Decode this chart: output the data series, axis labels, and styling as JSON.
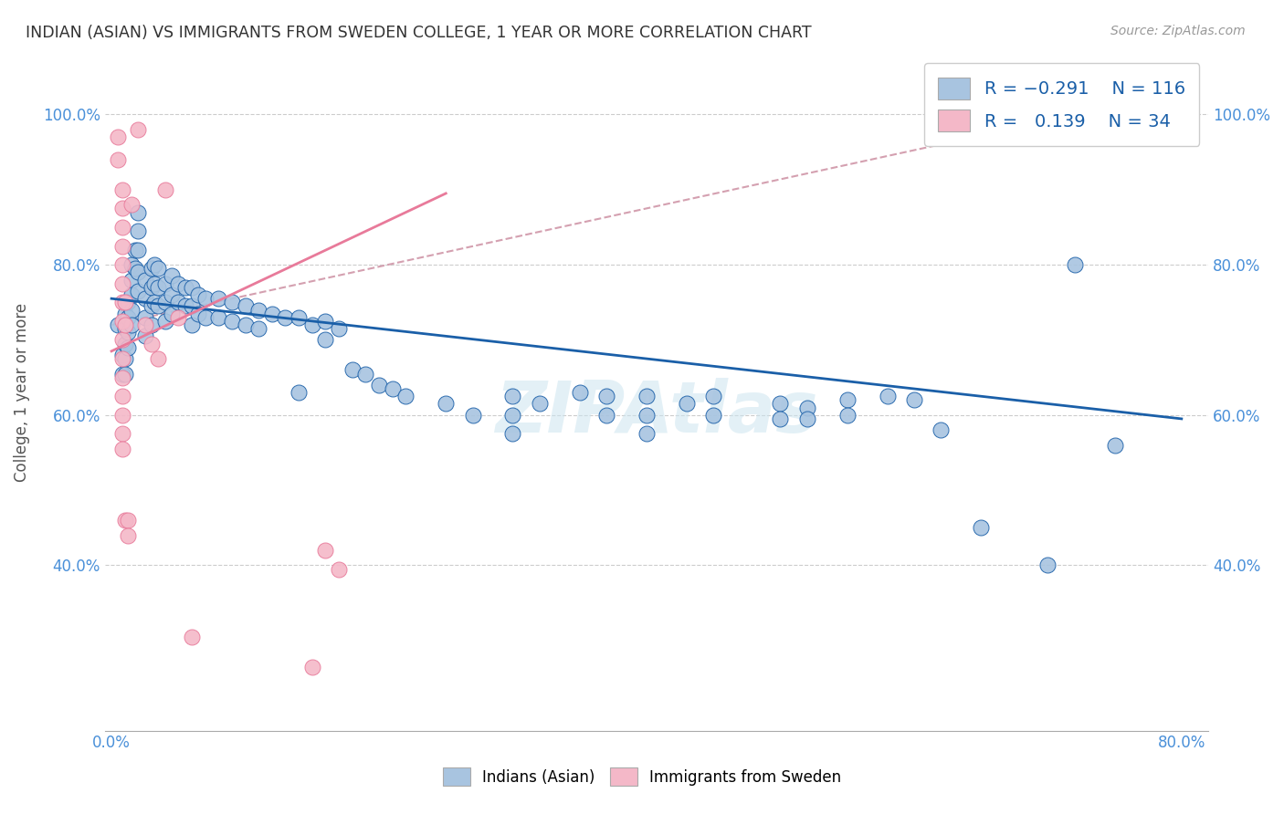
{
  "title": "INDIAN (ASIAN) VS IMMIGRANTS FROM SWEDEN COLLEGE, 1 YEAR OR MORE CORRELATION CHART",
  "source": "Source: ZipAtlas.com",
  "ylabel": "College, 1 year or more",
  "xlabel": "",
  "xlim": [
    -0.005,
    0.82
  ],
  "ylim": [
    0.18,
    1.08
  ],
  "xticks": [
    0.0,
    0.1,
    0.2,
    0.3,
    0.4,
    0.5,
    0.6,
    0.7,
    0.8
  ],
  "xticklabels": [
    "0.0%",
    "",
    "",
    "",
    "",
    "",
    "",
    "",
    "80.0%"
  ],
  "ytick_positions": [
    0.4,
    0.6,
    0.8,
    1.0
  ],
  "yticklabels": [
    "40.0%",
    "60.0%",
    "80.0%",
    "100.0%"
  ],
  "color_blue": "#a8c4e0",
  "color_pink": "#f4b8c8",
  "line_blue": "#1a5fa8",
  "line_pink": "#e87a9a",
  "line_dashed_color": "#d4a0b0",
  "watermark": "ZIPAtlas",
  "blue_points": [
    [
      0.005,
      0.72
    ],
    [
      0.008,
      0.68
    ],
    [
      0.008,
      0.655
    ],
    [
      0.01,
      0.735
    ],
    [
      0.01,
      0.715
    ],
    [
      0.01,
      0.695
    ],
    [
      0.01,
      0.675
    ],
    [
      0.01,
      0.655
    ],
    [
      0.012,
      0.75
    ],
    [
      0.012,
      0.73
    ],
    [
      0.012,
      0.71
    ],
    [
      0.012,
      0.69
    ],
    [
      0.015,
      0.8
    ],
    [
      0.015,
      0.78
    ],
    [
      0.015,
      0.76
    ],
    [
      0.015,
      0.74
    ],
    [
      0.015,
      0.72
    ],
    [
      0.018,
      0.82
    ],
    [
      0.018,
      0.795
    ],
    [
      0.02,
      0.87
    ],
    [
      0.02,
      0.845
    ],
    [
      0.02,
      0.82
    ],
    [
      0.02,
      0.79
    ],
    [
      0.02,
      0.765
    ],
    [
      0.025,
      0.78
    ],
    [
      0.025,
      0.755
    ],
    [
      0.025,
      0.73
    ],
    [
      0.025,
      0.705
    ],
    [
      0.03,
      0.795
    ],
    [
      0.03,
      0.77
    ],
    [
      0.03,
      0.745
    ],
    [
      0.03,
      0.72
    ],
    [
      0.032,
      0.8
    ],
    [
      0.032,
      0.775
    ],
    [
      0.032,
      0.75
    ],
    [
      0.035,
      0.795
    ],
    [
      0.035,
      0.77
    ],
    [
      0.035,
      0.745
    ],
    [
      0.04,
      0.775
    ],
    [
      0.04,
      0.75
    ],
    [
      0.04,
      0.725
    ],
    [
      0.045,
      0.785
    ],
    [
      0.045,
      0.76
    ],
    [
      0.045,
      0.735
    ],
    [
      0.05,
      0.775
    ],
    [
      0.05,
      0.75
    ],
    [
      0.055,
      0.77
    ],
    [
      0.055,
      0.745
    ],
    [
      0.06,
      0.77
    ],
    [
      0.06,
      0.745
    ],
    [
      0.06,
      0.72
    ],
    [
      0.065,
      0.76
    ],
    [
      0.065,
      0.735
    ],
    [
      0.07,
      0.755
    ],
    [
      0.07,
      0.73
    ],
    [
      0.08,
      0.755
    ],
    [
      0.08,
      0.73
    ],
    [
      0.09,
      0.75
    ],
    [
      0.09,
      0.725
    ],
    [
      0.1,
      0.745
    ],
    [
      0.1,
      0.72
    ],
    [
      0.11,
      0.74
    ],
    [
      0.11,
      0.715
    ],
    [
      0.12,
      0.735
    ],
    [
      0.13,
      0.73
    ],
    [
      0.14,
      0.73
    ],
    [
      0.14,
      0.63
    ],
    [
      0.15,
      0.72
    ],
    [
      0.16,
      0.725
    ],
    [
      0.16,
      0.7
    ],
    [
      0.17,
      0.715
    ],
    [
      0.18,
      0.66
    ],
    [
      0.19,
      0.655
    ],
    [
      0.2,
      0.64
    ],
    [
      0.21,
      0.635
    ],
    [
      0.22,
      0.625
    ],
    [
      0.25,
      0.615
    ],
    [
      0.27,
      0.6
    ],
    [
      0.3,
      0.625
    ],
    [
      0.3,
      0.6
    ],
    [
      0.3,
      0.575
    ],
    [
      0.32,
      0.615
    ],
    [
      0.35,
      0.63
    ],
    [
      0.37,
      0.625
    ],
    [
      0.37,
      0.6
    ],
    [
      0.4,
      0.625
    ],
    [
      0.4,
      0.6
    ],
    [
      0.4,
      0.575
    ],
    [
      0.43,
      0.615
    ],
    [
      0.45,
      0.625
    ],
    [
      0.45,
      0.6
    ],
    [
      0.5,
      0.615
    ],
    [
      0.5,
      0.595
    ],
    [
      0.52,
      0.61
    ],
    [
      0.52,
      0.595
    ],
    [
      0.55,
      0.62
    ],
    [
      0.55,
      0.6
    ],
    [
      0.58,
      0.625
    ],
    [
      0.6,
      0.62
    ],
    [
      0.62,
      0.58
    ],
    [
      0.65,
      0.45
    ],
    [
      0.7,
      0.4
    ],
    [
      0.72,
      0.8
    ],
    [
      0.75,
      0.56
    ]
  ],
  "pink_points": [
    [
      0.005,
      0.97
    ],
    [
      0.005,
      0.94
    ],
    [
      0.008,
      0.9
    ],
    [
      0.008,
      0.875
    ],
    [
      0.008,
      0.85
    ],
    [
      0.008,
      0.825
    ],
    [
      0.008,
      0.8
    ],
    [
      0.008,
      0.775
    ],
    [
      0.008,
      0.75
    ],
    [
      0.008,
      0.725
    ],
    [
      0.008,
      0.7
    ],
    [
      0.008,
      0.675
    ],
    [
      0.008,
      0.65
    ],
    [
      0.008,
      0.625
    ],
    [
      0.008,
      0.6
    ],
    [
      0.008,
      0.575
    ],
    [
      0.008,
      0.555
    ],
    [
      0.01,
      0.75
    ],
    [
      0.01,
      0.72
    ],
    [
      0.01,
      0.46
    ],
    [
      0.012,
      0.46
    ],
    [
      0.012,
      0.44
    ],
    [
      0.015,
      0.88
    ],
    [
      0.02,
      0.98
    ],
    [
      0.025,
      0.72
    ],
    [
      0.03,
      0.695
    ],
    [
      0.035,
      0.675
    ],
    [
      0.04,
      0.9
    ],
    [
      0.05,
      0.73
    ],
    [
      0.06,
      0.305
    ],
    [
      0.15,
      0.265
    ],
    [
      0.16,
      0.42
    ],
    [
      0.17,
      0.395
    ]
  ],
  "blue_trend_x": [
    0.0,
    0.8
  ],
  "blue_trend_y": [
    0.755,
    0.595
  ],
  "pink_trend_x": [
    0.0,
    0.25
  ],
  "pink_trend_y": [
    0.685,
    0.895
  ],
  "dashed_trend_x": [
    0.0,
    0.8
  ],
  "dashed_trend_y": [
    0.72,
    1.03
  ],
  "figsize": [
    14.06,
    8.92
  ],
  "dpi": 100
}
